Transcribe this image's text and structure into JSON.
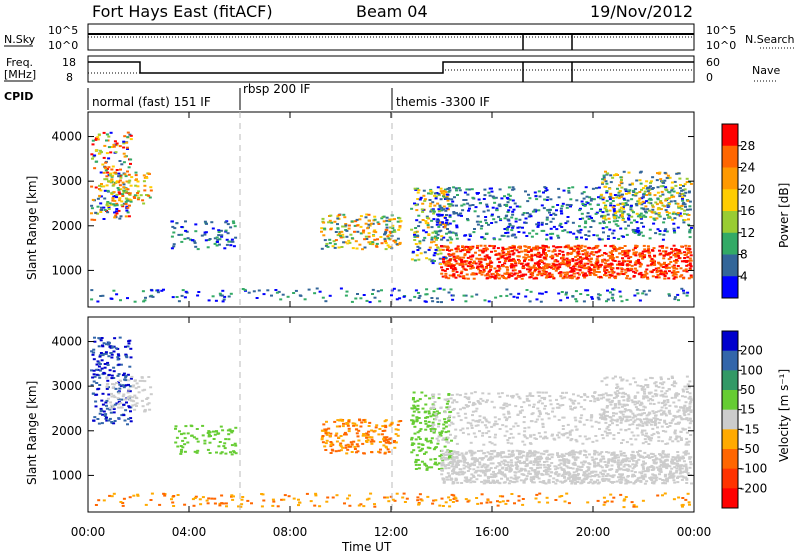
{
  "header": {
    "station": "Fort Hays East (fitACF)",
    "beam": "Beam 04",
    "date": "19/Nov/2012"
  },
  "noise_panel": {
    "left_label": "N.Sky",
    "left_ticks": [
      "10^5",
      "10^0"
    ],
    "right_ticks": [
      "10^5",
      "10^0"
    ],
    "right_label": "N.Search"
  },
  "freq_panel": {
    "left_label_1": "Freq.",
    "left_label_2": "[MHz]",
    "left_ticks": [
      "18",
      "8"
    ],
    "right_ticks": [
      "60",
      "0"
    ],
    "right_label": "Nave"
  },
  "cpid_panel": {
    "label": "CPID",
    "modes": [
      "normal (fast) 151 IF",
      "rbsp 200 IF",
      "themis -3300 IF"
    ]
  },
  "chart_data": [
    {
      "type": "heatmap",
      "title": "",
      "xlabel": "Time UT",
      "ylabel": "Slant Range [km]",
      "y_ticks": [
        "1000",
        "2000",
        "3000",
        "4000"
      ],
      "x_ticks": [
        "00:00",
        "04:00",
        "08:00",
        "12:00",
        "16:00",
        "20:00",
        "00:00"
      ],
      "xlim_hours": [
        0,
        24
      ],
      "ylim_km": [
        180,
        4550
      ],
      "colorbar_label": "Power [dB]",
      "colorbar_ticks": [
        "28",
        "24",
        "20",
        "16",
        "12",
        "8",
        "4"
      ],
      "colorbar_colors": [
        "#ff0000",
        "#ff6600",
        "#ff9900",
        "#ffcc00",
        "#99cc33",
        "#33aa66",
        "#336699",
        "#0000ff"
      ]
    },
    {
      "type": "heatmap",
      "title": "",
      "xlabel": "Time UT",
      "ylabel": "Slant Range [km]",
      "y_ticks": [
        "1000",
        "2000",
        "3000",
        "4000"
      ],
      "x_ticks": [
        "00:00",
        "04:00",
        "08:00",
        "12:00",
        "16:00",
        "20:00",
        "00:00"
      ],
      "xlim_hours": [
        0,
        24
      ],
      "ylim_km": [
        180,
        4550
      ],
      "colorbar_label": "Velocity [m s⁻¹]",
      "colorbar_ticks": [
        "200",
        "100",
        "50",
        "15",
        "-15",
        "-50",
        "-100",
        "-200"
      ],
      "colorbar_colors": [
        "#0000cc",
        "#3366aa",
        "#339966",
        "#66cc33",
        "#cccccc",
        "#ffaa00",
        "#ff6600",
        "#ff3300",
        "#ff0000"
      ]
    }
  ],
  "x_axis": {
    "label": "Time UT",
    "ticks": [
      "00:00",
      "04:00",
      "08:00",
      "12:00",
      "16:00",
      "20:00",
      "00:00"
    ]
  }
}
